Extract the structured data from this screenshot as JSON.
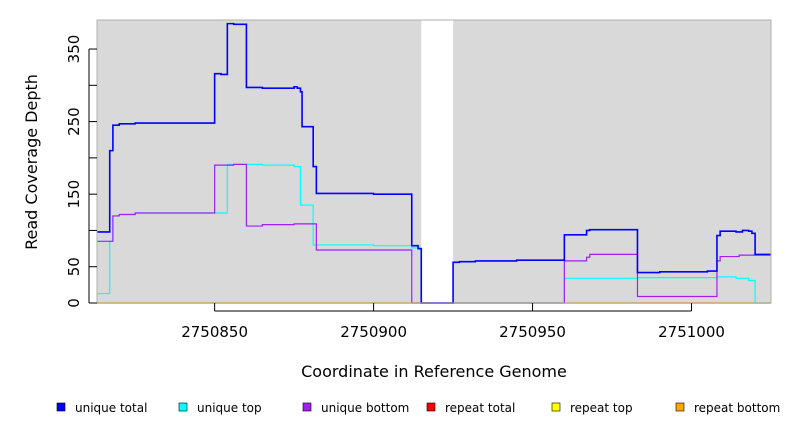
{
  "chart_data": {
    "type": "line",
    "xlabel": "Coordinate in Reference Genome",
    "ylabel": "Read Coverage Depth",
    "xlim": [
      2750813,
      2751025
    ],
    "ylim": [
      0,
      390
    ],
    "x_ticks": [
      2750850,
      2750900,
      2750950,
      2751000
    ],
    "x_tick_labels": [
      "2750850",
      "2750900",
      "2750950",
      "2751000"
    ],
    "y_ticks": [
      0,
      50,
      150,
      250,
      350
    ],
    "y_tick_labels": [
      "0",
      "50",
      "150",
      "250",
      "350"
    ],
    "y_minor_ticks": [
      100,
      200,
      300
    ],
    "grid": false,
    "background": "#d9d9d9",
    "gap_regions": [
      [
        2750915,
        2750925
      ]
    ],
    "legend_position": "bottom",
    "series": [
      {
        "name": "unique total",
        "color": "#0000ff",
        "points": [
          [
            2750813,
            98
          ],
          [
            2750817,
            98
          ],
          [
            2750817,
            210
          ],
          [
            2750818,
            210
          ],
          [
            2750818,
            245
          ],
          [
            2750820,
            245
          ],
          [
            2750820,
            247
          ],
          [
            2750825,
            247
          ],
          [
            2750825,
            248
          ],
          [
            2750850,
            248
          ],
          [
            2750850,
            316
          ],
          [
            2750852,
            316
          ],
          [
            2750852,
            315
          ],
          [
            2750854,
            315
          ],
          [
            2750854,
            385
          ],
          [
            2750856,
            385
          ],
          [
            2750856,
            384
          ],
          [
            2750860,
            384
          ],
          [
            2750860,
            297
          ],
          [
            2750865,
            297
          ],
          [
            2750865,
            296
          ],
          [
            2750875,
            296
          ],
          [
            2750875,
            298
          ],
          [
            2750876,
            298
          ],
          [
            2750876,
            296
          ],
          [
            2750877,
            296
          ],
          [
            2750877,
            291
          ],
          [
            2750877.5,
            291
          ],
          [
            2750877.5,
            243
          ],
          [
            2750881,
            243
          ],
          [
            2750881,
            188
          ],
          [
            2750882,
            188
          ],
          [
            2750882,
            151
          ],
          [
            2750900,
            151
          ],
          [
            2750900,
            150
          ],
          [
            2750912,
            150
          ],
          [
            2750912,
            79
          ],
          [
            2750914,
            79
          ],
          [
            2750914,
            75
          ],
          [
            2750915,
            75
          ],
          [
            2750915,
            0
          ],
          [
            2750925,
            0
          ],
          [
            2750925,
            56
          ],
          [
            2750927,
            56
          ],
          [
            2750927,
            57
          ],
          [
            2750932,
            57
          ],
          [
            2750932,
            58
          ],
          [
            2750945,
            58
          ],
          [
            2750945,
            59
          ],
          [
            2750960,
            59
          ],
          [
            2750960,
            94
          ],
          [
            2750967,
            94
          ],
          [
            2750967,
            100
          ],
          [
            2750968,
            100
          ],
          [
            2750968,
            101
          ],
          [
            2750983,
            101
          ],
          [
            2750983,
            42
          ],
          [
            2750990,
            42
          ],
          [
            2750990,
            43
          ],
          [
            2751005,
            43
          ],
          [
            2751005,
            44
          ],
          [
            2751008,
            44
          ],
          [
            2751008,
            93
          ],
          [
            2751009,
            93
          ],
          [
            2751009,
            99
          ],
          [
            2751014,
            99
          ],
          [
            2751014,
            98
          ],
          [
            2751016,
            98
          ],
          [
            2751016,
            100
          ],
          [
            2751018,
            100
          ],
          [
            2751018,
            99
          ],
          [
            2751019,
            99
          ],
          [
            2751019,
            96
          ],
          [
            2751020,
            96
          ],
          [
            2751020,
            67
          ],
          [
            2751025,
            67
          ]
        ]
      },
      {
        "name": "unique top",
        "color": "#00ffff",
        "points": [
          [
            2750813,
            13
          ],
          [
            2750817,
            13
          ],
          [
            2750817,
            85
          ],
          [
            2750818,
            85
          ],
          [
            2750818,
            120
          ],
          [
            2750820,
            120
          ],
          [
            2750820,
            122
          ],
          [
            2750825,
            122
          ],
          [
            2750825,
            124
          ],
          [
            2750854,
            124
          ],
          [
            2750854,
            191
          ],
          [
            2750865,
            191
          ],
          [
            2750865,
            190
          ],
          [
            2750875,
            190
          ],
          [
            2750875,
            188
          ],
          [
            2750877,
            188
          ],
          [
            2750877,
            135
          ],
          [
            2750881,
            135
          ],
          [
            2750881,
            80
          ],
          [
            2750900,
            80
          ],
          [
            2750900,
            79
          ],
          [
            2750912,
            79
          ],
          [
            2750912,
            76
          ],
          [
            2750914,
            76
          ],
          [
            2750914,
            74
          ],
          [
            2750915,
            74
          ],
          [
            2750915,
            0
          ],
          [
            2750960,
            0
          ],
          [
            2750960,
            34
          ],
          [
            2750983,
            34
          ],
          [
            2750983,
            35
          ],
          [
            2751008,
            35
          ],
          [
            2751008,
            36
          ],
          [
            2751014,
            36
          ],
          [
            2751014,
            34
          ],
          [
            2751018,
            34
          ],
          [
            2751018,
            31
          ],
          [
            2751020,
            31
          ],
          [
            2751020,
            0
          ],
          [
            2751025,
            0
          ]
        ]
      },
      {
        "name": "unique bottom",
        "color": "#a020f0",
        "points": [
          [
            2750813,
            85
          ],
          [
            2750818,
            85
          ],
          [
            2750818,
            120
          ],
          [
            2750820,
            120
          ],
          [
            2750820,
            122
          ],
          [
            2750825,
            122
          ],
          [
            2750825,
            124
          ],
          [
            2750850,
            124
          ],
          [
            2750850,
            190
          ],
          [
            2750856,
            190
          ],
          [
            2750856,
            191
          ],
          [
            2750860,
            191
          ],
          [
            2750860,
            106
          ],
          [
            2750865,
            106
          ],
          [
            2750865,
            108
          ],
          [
            2750875,
            108
          ],
          [
            2750875,
            109
          ],
          [
            2750882,
            109
          ],
          [
            2750882,
            73
          ],
          [
            2750912,
            73
          ],
          [
            2750912,
            0
          ],
          [
            2750925,
            0
          ],
          [
            2750960,
            0
          ],
          [
            2750960,
            58
          ],
          [
            2750967,
            58
          ],
          [
            2750967,
            63
          ],
          [
            2750968,
            63
          ],
          [
            2750968,
            67
          ],
          [
            2750983,
            67
          ],
          [
            2750983,
            9
          ],
          [
            2751008,
            9
          ],
          [
            2751008,
            58
          ],
          [
            2751009,
            58
          ],
          [
            2751009,
            64
          ],
          [
            2751015,
            64
          ],
          [
            2751015,
            66
          ],
          [
            2751025,
            66
          ]
        ]
      },
      {
        "name": "repeat total",
        "color": "#ff0000",
        "points": [
          [
            2750813,
            0
          ],
          [
            2751025,
            0
          ]
        ]
      },
      {
        "name": "repeat top",
        "color": "#ffff00",
        "points": [
          [
            2750813,
            0
          ],
          [
            2751025,
            0
          ]
        ]
      },
      {
        "name": "repeat bottom",
        "color": "#ffa500",
        "points": [
          [
            2750813,
            0
          ],
          [
            2751025,
            0
          ]
        ]
      }
    ]
  }
}
